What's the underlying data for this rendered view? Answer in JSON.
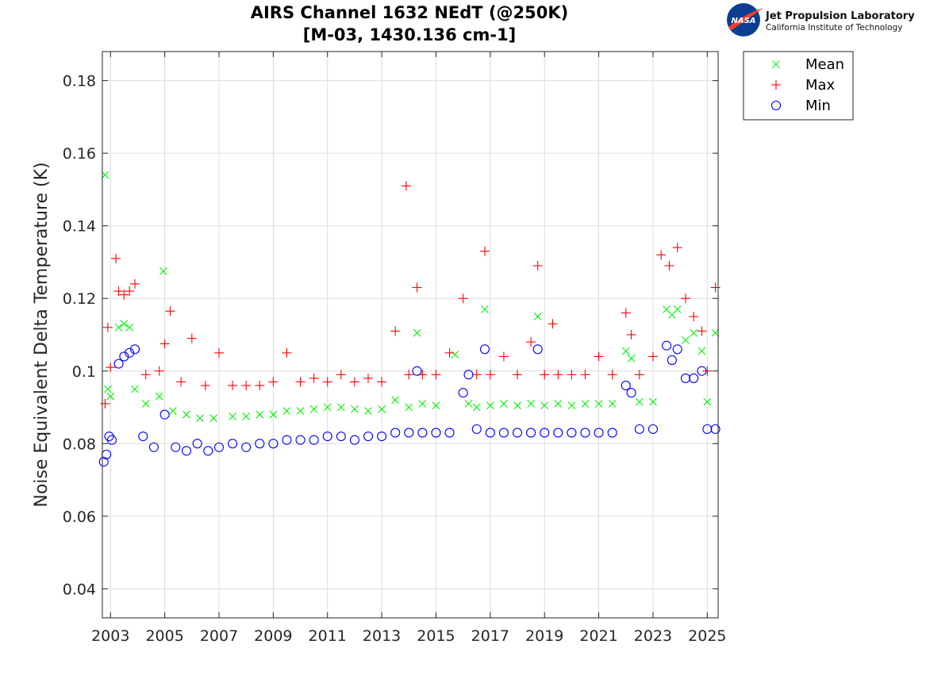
{
  "chart_data": {
    "type": "scatter",
    "title_lines": [
      "AIRS Channel 1632 NEdT (@250K)",
      "[M-03, 1430.136 cm-1]"
    ],
    "xlabel": "",
    "ylabel": "Noise Equivalent Delta Temperature (K)",
    "xlim": [
      2002.7,
      2025.4
    ],
    "ylim": [
      0.032,
      0.188
    ],
    "x_ticks": [
      2003,
      2005,
      2007,
      2009,
      2011,
      2013,
      2015,
      2017,
      2019,
      2021,
      2023,
      2025
    ],
    "x_tick_labels": [
      "2003",
      "2005",
      "2007",
      "2009",
      "2011",
      "2013",
      "2015",
      "2017",
      "2019",
      "2021",
      "2023",
      "2025"
    ],
    "y_ticks": [
      0.04,
      0.06,
      0.08,
      0.1,
      0.12,
      0.14,
      0.16,
      0.18
    ],
    "y_tick_labels": [
      "0.04",
      "0.06",
      "0.08",
      "0.1",
      "0.12",
      "0.14",
      "0.16",
      "0.18"
    ],
    "grid": true,
    "legend": {
      "position": "outside-top-right",
      "entries": [
        "Mean",
        "Max",
        "Min"
      ]
    },
    "series": [
      {
        "name": "Mean",
        "marker": "x",
        "color": "#00ee00",
        "x": [
          2002.8,
          2002.9,
          2003.0,
          2003.3,
          2003.5,
          2003.7,
          2003.9,
          2004.3,
          2004.8,
          2004.95,
          2005.3,
          2005.8,
          2006.3,
          2006.8,
          2007.5,
          2008.0,
          2008.5,
          2009.0,
          2009.5,
          2010.0,
          2010.5,
          2011.0,
          2011.5,
          2012.0,
          2012.5,
          2013.0,
          2013.5,
          2014.0,
          2014.3,
          2014.5,
          2015.0,
          2015.7,
          2016.2,
          2016.5,
          2016.8,
          2017.0,
          2017.5,
          2018.0,
          2018.5,
          2018.75,
          2019.0,
          2019.5,
          2020.0,
          2020.5,
          2021.0,
          2021.5,
          2022.0,
          2022.2,
          2022.5,
          2023.0,
          2023.5,
          2023.7,
          2023.9,
          2024.2,
          2024.5,
          2024.8,
          2025.0,
          2025.3
        ],
        "y": [
          0.154,
          0.095,
          0.093,
          0.112,
          0.113,
          0.112,
          0.095,
          0.091,
          0.093,
          0.1275,
          0.089,
          0.088,
          0.087,
          0.087,
          0.0875,
          0.0875,
          0.088,
          0.088,
          0.089,
          0.089,
          0.0895,
          0.09,
          0.09,
          0.0895,
          0.089,
          0.0895,
          0.092,
          0.09,
          0.1105,
          0.091,
          0.0905,
          0.1045,
          0.091,
          0.09,
          0.117,
          0.0905,
          0.091,
          0.0905,
          0.091,
          0.115,
          0.0905,
          0.091,
          0.0905,
          0.091,
          0.091,
          0.091,
          0.1055,
          0.1035,
          0.0915,
          0.0915,
          0.117,
          0.1155,
          0.117,
          0.1085,
          0.1105,
          0.1055,
          0.0915,
          0.1105
        ]
      },
      {
        "name": "Max",
        "marker": "+",
        "color": "#ff0000",
        "x": [
          2002.8,
          2002.9,
          2003.0,
          2003.2,
          2003.3,
          2003.5,
          2003.7,
          2003.9,
          2004.3,
          2004.8,
          2005.0,
          2005.2,
          2005.6,
          2006.0,
          2006.5,
          2007.0,
          2007.5,
          2008.0,
          2008.5,
          2009.0,
          2009.5,
          2010.0,
          2010.5,
          2011.0,
          2011.5,
          2012.0,
          2012.5,
          2013.0,
          2013.5,
          2013.9,
          2014.0,
          2014.3,
          2014.5,
          2015.0,
          2015.5,
          2016.0,
          2016.5,
          2016.8,
          2017.0,
          2017.5,
          2018.0,
          2018.5,
          2018.75,
          2019.0,
          2019.3,
          2019.5,
          2020.0,
          2020.5,
          2021.0,
          2021.5,
          2022.0,
          2022.2,
          2022.5,
          2023.0,
          2023.3,
          2023.6,
          2023.9,
          2024.2,
          2024.5,
          2024.8,
          2025.0,
          2025.3
        ],
        "y": [
          0.091,
          0.112,
          0.101,
          0.131,
          0.122,
          0.121,
          0.122,
          0.124,
          0.099,
          0.1,
          0.1075,
          0.1165,
          0.097,
          0.109,
          0.096,
          0.105,
          0.096,
          0.096,
          0.096,
          0.097,
          0.105,
          0.097,
          0.098,
          0.097,
          0.099,
          0.097,
          0.098,
          0.097,
          0.111,
          0.151,
          0.099,
          0.123,
          0.099,
          0.099,
          0.105,
          0.12,
          0.099,
          0.133,
          0.099,
          0.104,
          0.099,
          0.108,
          0.129,
          0.099,
          0.113,
          0.099,
          0.099,
          0.099,
          0.104,
          0.099,
          0.116,
          0.11,
          0.099,
          0.104,
          0.132,
          0.129,
          0.134,
          0.12,
          0.115,
          0.111,
          0.1,
          0.123
        ]
      },
      {
        "name": "Min",
        "marker": "o",
        "color": "#0000ff",
        "x": [
          2002.75,
          2002.85,
          2002.95,
          2003.05,
          2003.3,
          2003.5,
          2003.7,
          2003.9,
          2004.2,
          2004.6,
          2005.0,
          2005.4,
          2005.8,
          2006.2,
          2006.6,
          2007.0,
          2007.5,
          2008.0,
          2008.5,
          2009.0,
          2009.5,
          2010.0,
          2010.5,
          2011.0,
          2011.5,
          2012.0,
          2012.5,
          2013.0,
          2013.5,
          2014.0,
          2014.3,
          2014.5,
          2015.0,
          2015.5,
          2016.0,
          2016.2,
          2016.5,
          2016.8,
          2017.0,
          2017.5,
          2018.0,
          2018.5,
          2018.75,
          2019.0,
          2019.5,
          2020.0,
          2020.5,
          2021.0,
          2021.5,
          2022.0,
          2022.2,
          2022.5,
          2023.0,
          2023.5,
          2023.7,
          2023.9,
          2024.2,
          2024.5,
          2024.8,
          2025.0,
          2025.3
        ],
        "y": [
          0.075,
          0.077,
          0.082,
          0.081,
          0.102,
          0.104,
          0.105,
          0.106,
          0.082,
          0.079,
          0.088,
          0.079,
          0.078,
          0.08,
          0.078,
          0.079,
          0.08,
          0.079,
          0.08,
          0.08,
          0.081,
          0.081,
          0.081,
          0.082,
          0.082,
          0.081,
          0.082,
          0.082,
          0.083,
          0.083,
          0.1,
          0.083,
          0.083,
          0.083,
          0.094,
          0.099,
          0.084,
          0.106,
          0.083,
          0.083,
          0.083,
          0.083,
          0.106,
          0.083,
          0.083,
          0.083,
          0.083,
          0.083,
          0.083,
          0.096,
          0.094,
          0.084,
          0.084,
          0.107,
          0.103,
          0.106,
          0.098,
          0.098,
          0.1,
          0.084,
          0.084
        ]
      }
    ]
  },
  "logo": {
    "nasa_text": "NASA",
    "org_name": "Jet Propulsion Laboratory",
    "org_subtitle": "California Institute of Technology",
    "nasa_blue": "#0b3d91",
    "nasa_red": "#fc3d21"
  }
}
